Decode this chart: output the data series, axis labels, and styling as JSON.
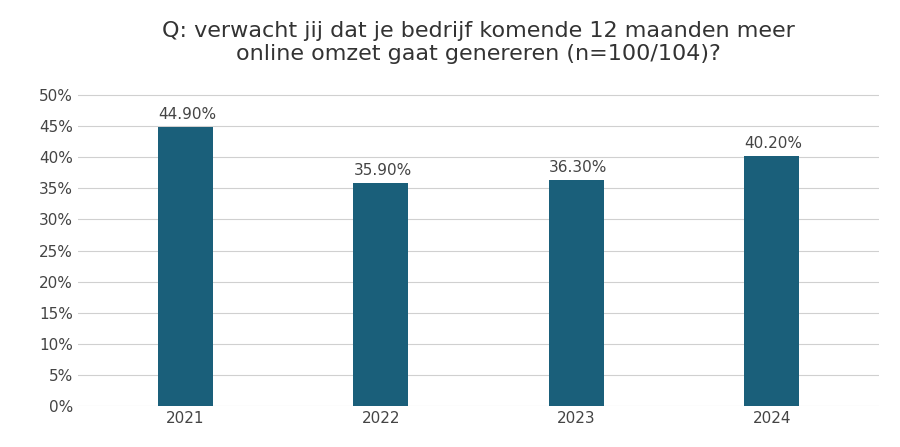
{
  "title": "Q: verwacht jij dat je bedrijf komende 12 maanden meer\nonline omzet gaat genereren (n=100/104)?",
  "categories": [
    "2021",
    "2022",
    "2023",
    "2024"
  ],
  "values": [
    44.9,
    35.9,
    36.3,
    40.2
  ],
  "labels": [
    "44.90%",
    "35.90%",
    "36.30%",
    "40.20%"
  ],
  "bar_color": "#1a5f7a",
  "background_color": "#ffffff",
  "ylim": [
    0,
    52
  ],
  "yticks": [
    0,
    5,
    10,
    15,
    20,
    25,
    30,
    35,
    40,
    45,
    50
  ],
  "title_fontsize": 16,
  "label_fontsize": 11,
  "tick_fontsize": 11,
  "bar_width": 0.28,
  "grid_color": "#d0d0d0",
  "label_color": "#444444"
}
